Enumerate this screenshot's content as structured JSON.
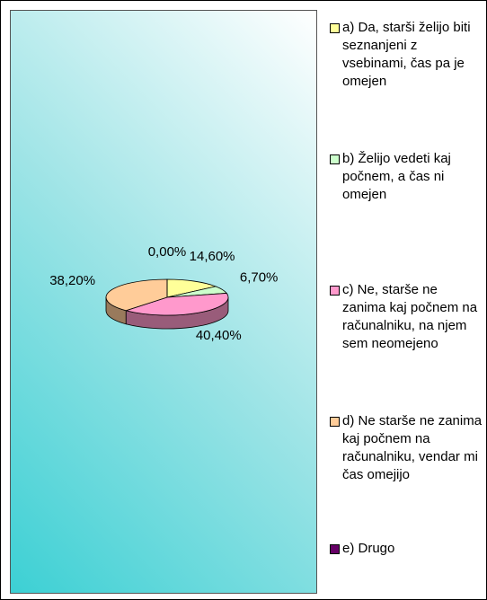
{
  "chart_data": {
    "type": "pie3d",
    "categories": [
      "a) Da, starši želijo biti seznanjeni z vsebinami,  čas pa je omejen",
      "b) Želijo vedeti kaj počnem, a čas ni omejen",
      "c) Ne, starše ne zanima kaj počnem na računalniku, na njem sem neomejeno",
      "d) Ne starše ne zanima kaj počnem na računalniku, vendar mi čas omejijo",
      "e) Drugo"
    ],
    "values": [
      14.6,
      6.7,
      40.4,
      38.2,
      0.0
    ],
    "value_labels": [
      "14,60%",
      "6,70%",
      "40,40%",
      "38,20%",
      "0,00%"
    ],
    "colors": [
      "#ffff99",
      "#ccffcc",
      "#ff99cc",
      "#ffcc99",
      "#660066"
    ],
    "legend": "right"
  }
}
